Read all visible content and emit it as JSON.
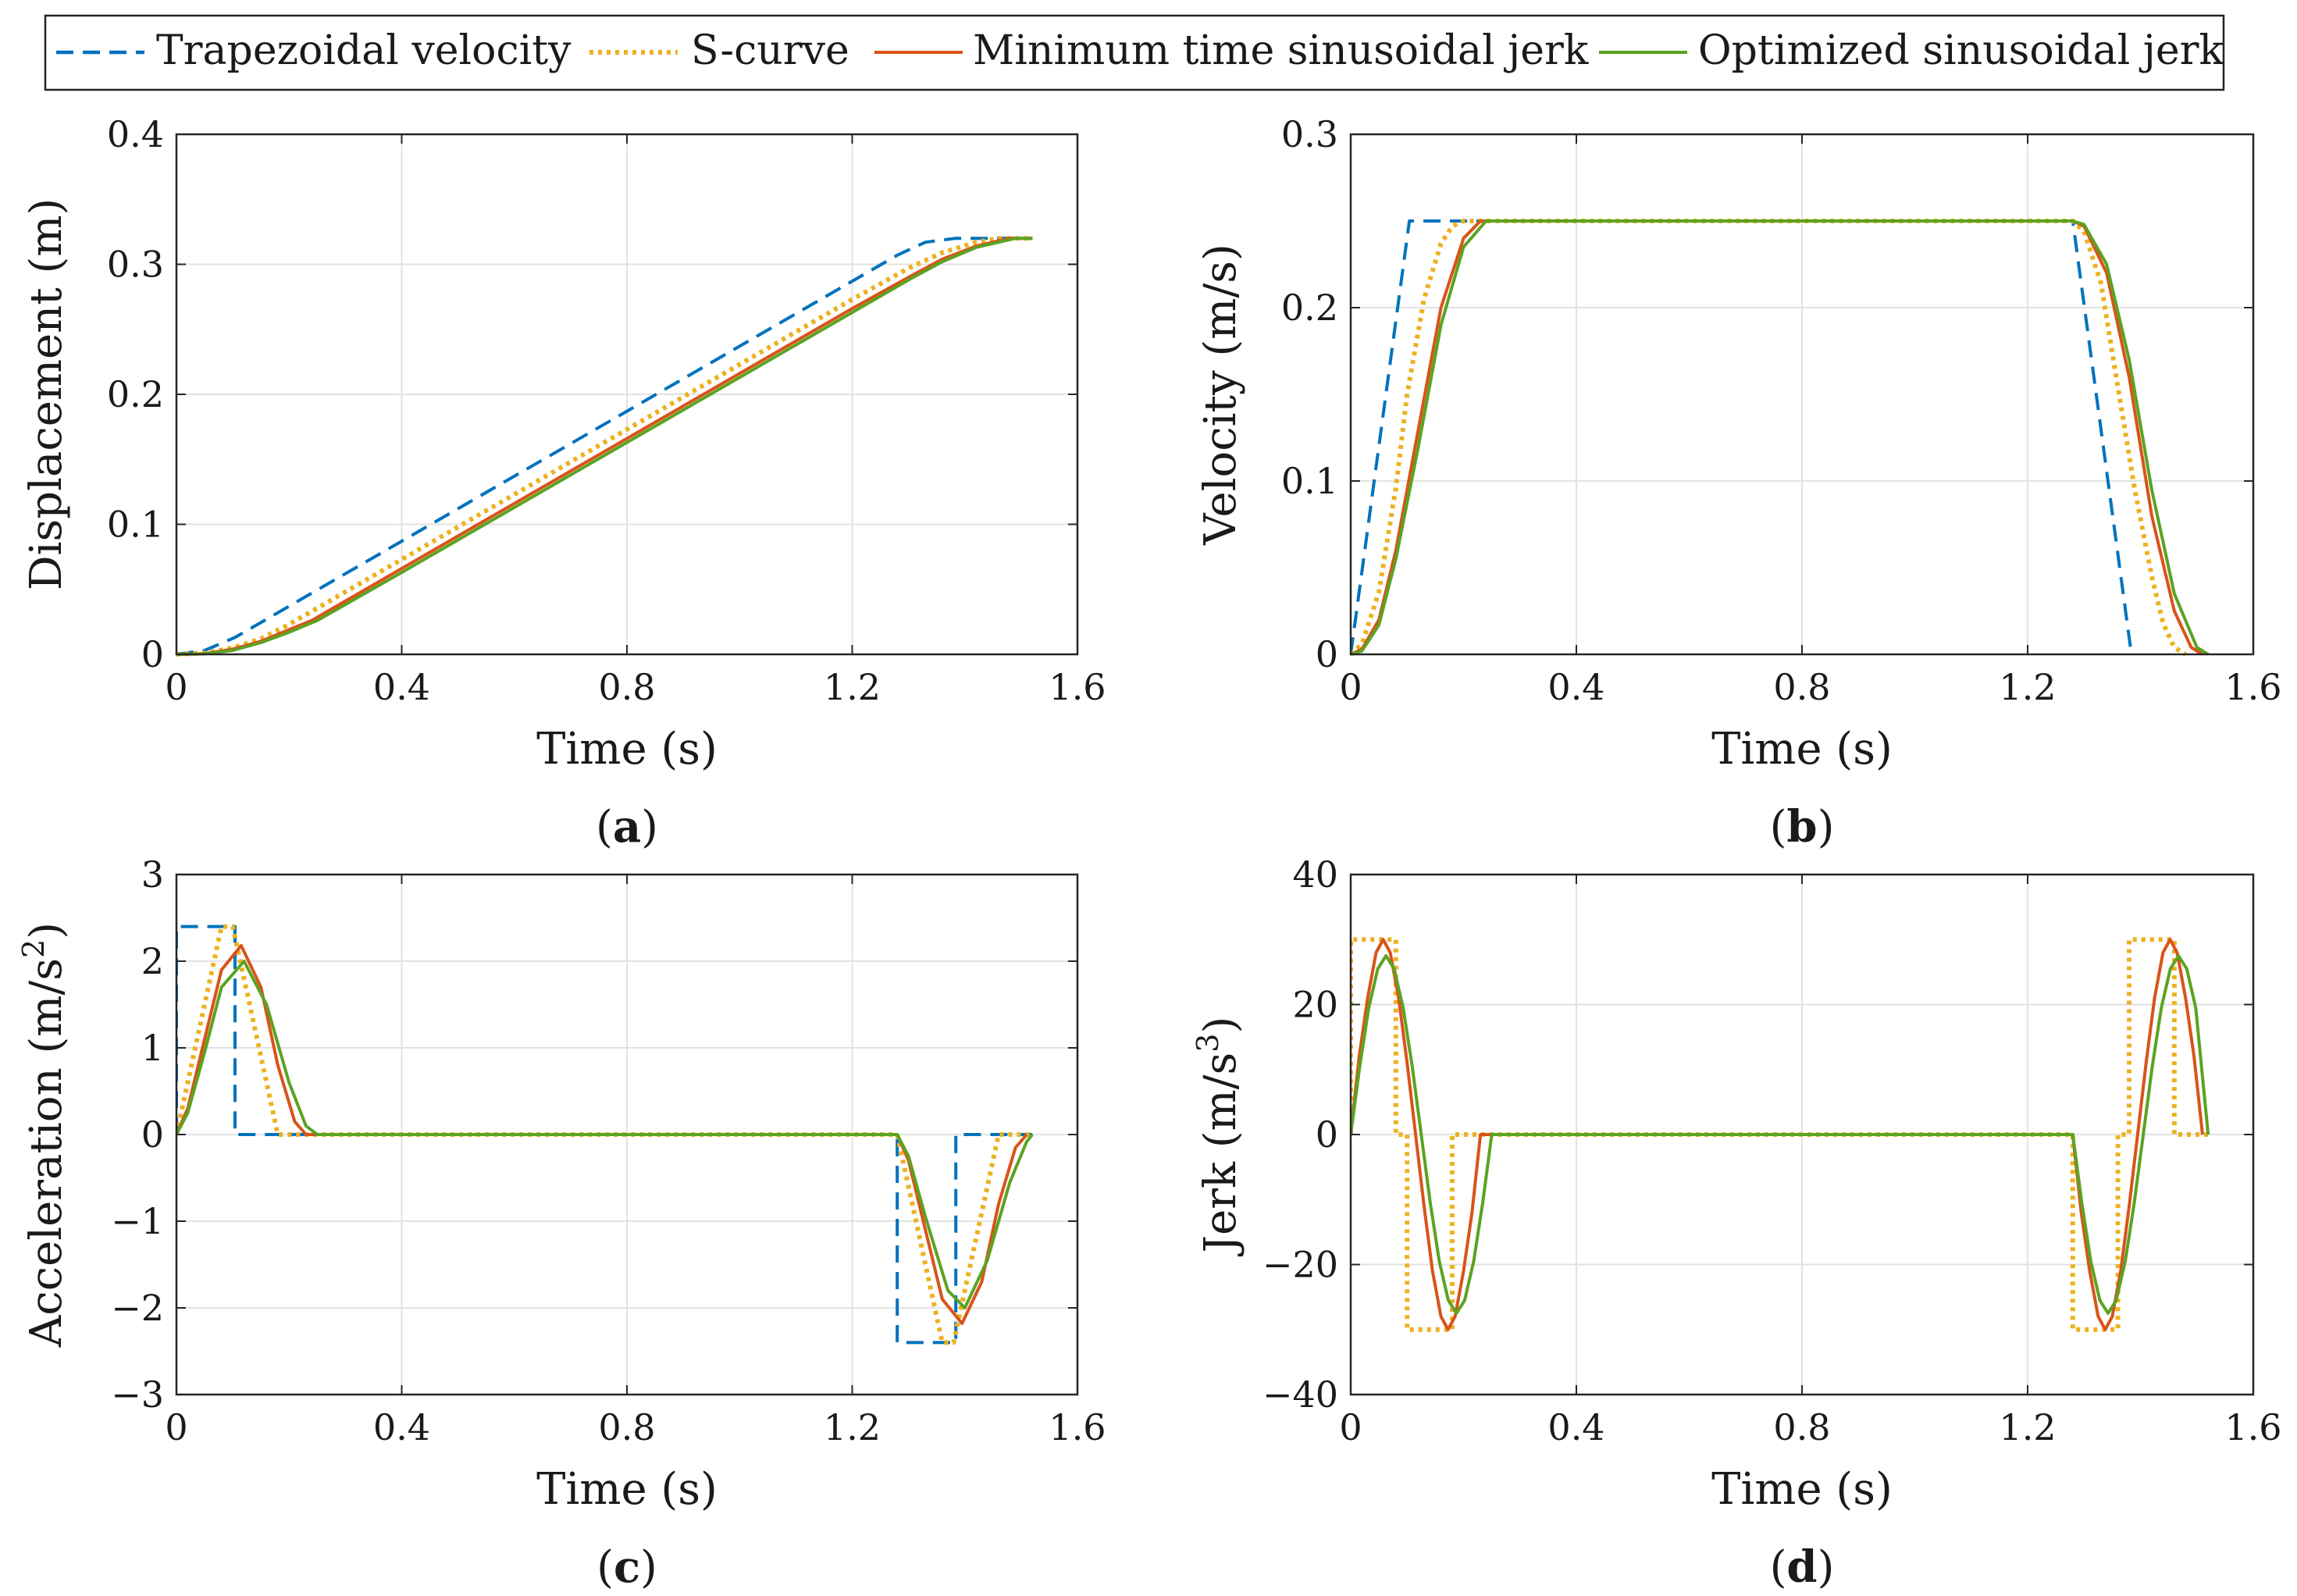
{
  "legend": [
    {
      "name": "Trapezoidal velocity",
      "color": "#0072BD",
      "dash": "dashed"
    },
    {
      "name": "S-curve",
      "color": "#EDB120",
      "dash": "dotted"
    },
    {
      "name": "Minimum time sinusoidal jerk",
      "color": "#D95319",
      "dash": "solid"
    },
    {
      "name": "Optimized sinusoidal jerk",
      "color": "#5BA322",
      "dash": "solid"
    }
  ],
  "chart_data": [
    {
      "type": "line",
      "caption": "(a)",
      "caption_letter": "a",
      "xlabel": "Time (s)",
      "ylabel": "Displacement (m)",
      "xlim": [
        0,
        1.6
      ],
      "ylim": [
        0,
        0.4
      ],
      "xticks": [
        0,
        0.4,
        0.8,
        1.2,
        1.6
      ],
      "xtick_labels": [
        "0",
        "0.4",
        "0.8",
        "1.2",
        "1.6"
      ],
      "yticks": [
        0,
        0.1,
        0.2,
        0.3,
        0.4
      ],
      "ytick_labels": [
        "0",
        "0.1",
        "0.2",
        "0.3",
        "0.4"
      ],
      "grid": true,
      "series": [
        {
          "name": "Trapezoidal velocity",
          "x": [
            0,
            0.05,
            0.104,
            0.2,
            0.4,
            0.6,
            0.8,
            1.0,
            1.2,
            1.28,
            1.33,
            1.384,
            1.52
          ],
          "y": [
            0,
            0.003,
            0.013,
            0.037,
            0.087,
            0.137,
            0.187,
            0.237,
            0.287,
            0.307,
            0.317,
            0.32,
            0.32
          ]
        },
        {
          "name": "S-curve",
          "x": [
            0,
            0.05,
            0.1,
            0.15,
            0.2,
            0.4,
            0.6,
            0.8,
            1.0,
            1.2,
            1.3,
            1.36,
            1.42,
            1.46,
            1.52
          ],
          "y": [
            0,
            0.001,
            0.005,
            0.012,
            0.023,
            0.073,
            0.123,
            0.173,
            0.223,
            0.273,
            0.297,
            0.309,
            0.317,
            0.32,
            0.32
          ]
        },
        {
          "name": "Minimum time sinusoidal jerk",
          "x": [
            0,
            0.05,
            0.1,
            0.15,
            0.2,
            0.24,
            0.4,
            0.6,
            0.8,
            1.0,
            1.2,
            1.3,
            1.36,
            1.42,
            1.48,
            1.52
          ],
          "y": [
            0,
            0.0005,
            0.004,
            0.01,
            0.019,
            0.026,
            0.066,
            0.116,
            0.166,
            0.216,
            0.266,
            0.29,
            0.304,
            0.314,
            0.32,
            0.32
          ]
        },
        {
          "name": "Optimized sinusoidal jerk",
          "x": [
            0,
            0.05,
            0.1,
            0.15,
            0.2,
            0.25,
            0.4,
            0.6,
            0.8,
            1.0,
            1.2,
            1.3,
            1.36,
            1.42,
            1.49,
            1.52
          ],
          "y": [
            0,
            0.0004,
            0.003,
            0.009,
            0.017,
            0.026,
            0.063,
            0.113,
            0.163,
            0.213,
            0.263,
            0.288,
            0.302,
            0.313,
            0.32,
            0.32
          ]
        }
      ]
    },
    {
      "type": "line",
      "caption": "(b)",
      "caption_letter": "b",
      "xlabel": "Time (s)",
      "ylabel": "Velocity (m/s)",
      "xlim": [
        0,
        1.6
      ],
      "ylim": [
        0,
        0.3
      ],
      "xticks": [
        0,
        0.4,
        0.8,
        1.2,
        1.6
      ],
      "xtick_labels": [
        "0",
        "0.4",
        "0.8",
        "1.2",
        "1.6"
      ],
      "yticks": [
        0,
        0.1,
        0.2,
        0.3
      ],
      "ytick_labels": [
        "0",
        "0.1",
        "0.2",
        "0.3"
      ],
      "grid": true,
      "series": [
        {
          "name": "Trapezoidal velocity",
          "x": [
            0,
            0.104,
            1.28,
            1.384
          ],
          "y": [
            0,
            0.25,
            0.25,
            0
          ]
        },
        {
          "name": "S-curve",
          "x": [
            0,
            0.02,
            0.05,
            0.08,
            0.1,
            0.13,
            0.16,
            0.18,
            0.2,
            1.28,
            1.3,
            1.33,
            1.36,
            1.39,
            1.42,
            1.44,
            1.46,
            1.48
          ],
          "y": [
            0,
            0.006,
            0.036,
            0.096,
            0.15,
            0.205,
            0.237,
            0.247,
            0.25,
            0.25,
            0.244,
            0.214,
            0.154,
            0.095,
            0.045,
            0.018,
            0.004,
            0
          ]
        },
        {
          "name": "Minimum time sinusoidal jerk",
          "x": [
            0,
            0.02,
            0.05,
            0.08,
            0.12,
            0.16,
            0.2,
            0.23,
            1.28,
            1.3,
            1.34,
            1.38,
            1.42,
            1.46,
            1.49,
            1.51
          ],
          "y": [
            0,
            0.003,
            0.02,
            0.06,
            0.13,
            0.2,
            0.24,
            0.25,
            0.25,
            0.247,
            0.22,
            0.16,
            0.08,
            0.025,
            0.004,
            0
          ]
        },
        {
          "name": "Optimized sinusoidal jerk",
          "x": [
            0,
            0.02,
            0.05,
            0.08,
            0.12,
            0.16,
            0.2,
            0.24,
            1.28,
            1.3,
            1.34,
            1.38,
            1.42,
            1.46,
            1.5,
            1.52
          ],
          "y": [
            0,
            0.002,
            0.017,
            0.055,
            0.12,
            0.19,
            0.235,
            0.25,
            0.25,
            0.248,
            0.225,
            0.17,
            0.095,
            0.035,
            0.004,
            0
          ]
        }
      ]
    },
    {
      "type": "line",
      "caption": "(c)",
      "caption_letter": "c",
      "xlabel": "Time (s)",
      "ylabel": "Acceleration (m/s",
      "ylabel_sup": "2",
      "ylabel_tail": ")",
      "xlim": [
        0,
        1.6
      ],
      "ylim": [
        -3,
        3
      ],
      "xticks": [
        0,
        0.4,
        0.8,
        1.2,
        1.6
      ],
      "xtick_labels": [
        "0",
        "0.4",
        "0.8",
        "1.2",
        "1.6"
      ],
      "yticks": [
        -3,
        -2,
        -1,
        0,
        1,
        2,
        3
      ],
      "ytick_labels": [
        "−3",
        "−2",
        "−1",
        "0",
        "1",
        "2",
        "3"
      ],
      "grid": true,
      "series": [
        {
          "name": "Trapezoidal velocity",
          "x": [
            0,
            0,
            0.104,
            0.104,
            1.28,
            1.28,
            1.384,
            1.384,
            1.52
          ],
          "y": [
            0,
            2.4,
            2.4,
            0,
            0,
            -2.4,
            -2.4,
            0,
            0
          ]
        },
        {
          "name": "S-curve",
          "x": [
            0,
            0.08,
            0.1,
            0.18,
            0.2,
            1.28,
            1.36,
            1.38,
            1.46,
            1.52
          ],
          "y": [
            0,
            2.4,
            2.4,
            0,
            0,
            0,
            -2.4,
            -2.4,
            0,
            0
          ]
        },
        {
          "name": "Minimum time sinusoidal jerk",
          "x": [
            0,
            0.02,
            0.05,
            0.08,
            0.115,
            0.15,
            0.18,
            0.21,
            0.23,
            1.28,
            1.3,
            1.33,
            1.36,
            1.395,
            1.43,
            1.46,
            1.49,
            1.51
          ],
          "y": [
            0,
            0.3,
            1.1,
            1.9,
            2.18,
            1.7,
            0.8,
            0.15,
            0,
            0,
            -0.3,
            -1.1,
            -1.9,
            -2.18,
            -1.7,
            -0.8,
            -0.15,
            0
          ]
        },
        {
          "name": "Optimized sinusoidal jerk",
          "x": [
            0,
            0.02,
            0.05,
            0.08,
            0.12,
            0.16,
            0.2,
            0.23,
            0.25,
            1.28,
            1.3,
            1.33,
            1.37,
            1.4,
            1.44,
            1.48,
            1.51,
            1.52
          ],
          "y": [
            0,
            0.25,
            0.95,
            1.7,
            2.0,
            1.5,
            0.6,
            0.1,
            0,
            0,
            -0.25,
            -0.95,
            -1.8,
            -2.0,
            -1.45,
            -0.55,
            -0.08,
            0
          ]
        }
      ]
    },
    {
      "type": "line",
      "caption": "(d)",
      "caption_letter": "d",
      "xlabel": "Time (s)",
      "ylabel": "Jerk (m/s",
      "ylabel_sup": "3",
      "ylabel_tail": ")",
      "xlim": [
        0,
        1.6
      ],
      "ylim": [
        -40,
        40
      ],
      "xticks": [
        0,
        0.4,
        0.8,
        1.2,
        1.6
      ],
      "xtick_labels": [
        "0",
        "0.4",
        "0.8",
        "1.2",
        "1.6"
      ],
      "yticks": [
        -40,
        -20,
        0,
        20,
        40
      ],
      "ytick_labels": [
        "−40",
        "−20",
        "0",
        "20",
        "40"
      ],
      "grid": true,
      "series": [
        {
          "name": "S-curve",
          "x": [
            0,
            0,
            0.08,
            0.08,
            0.1,
            0.1,
            0.18,
            0.18,
            0.2,
            1.28,
            1.28,
            1.36,
            1.36,
            1.38,
            1.38,
            1.46,
            1.46,
            1.52
          ],
          "y": [
            0,
            30,
            30,
            0,
            0,
            -30,
            -30,
            0,
            0,
            0,
            -30,
            -30,
            0,
            0,
            30,
            30,
            0,
            0
          ]
        },
        {
          "name": "Minimum time sinusoidal jerk",
          "x": [
            0,
            0.015,
            0.03,
            0.045,
            0.0575,
            0.07,
            0.085,
            0.1,
            0.115,
            0.13,
            0.145,
            0.16,
            0.1725,
            0.185,
            0.2,
            0.215,
            0.23,
            1.28,
            1.295,
            1.31,
            1.325,
            1.3375,
            1.35,
            1.365,
            1.38,
            1.395,
            1.41,
            1.425,
            1.44,
            1.4525,
            1.465,
            1.48,
            1.495,
            1.51
          ],
          "y": [
            0,
            12,
            21,
            28,
            30,
            28,
            21,
            11,
            0,
            -11,
            -21,
            -28,
            -30,
            -28,
            -21,
            -12,
            0,
            0,
            -12,
            -21,
            -28,
            -30,
            -28,
            -21,
            -11,
            0,
            11,
            21,
            28,
            30,
            28,
            21,
            12,
            0
          ]
        },
        {
          "name": "Optimized sinusoidal jerk",
          "x": [
            0,
            0.016,
            0.032,
            0.048,
            0.0625,
            0.077,
            0.093,
            0.109,
            0.125,
            0.141,
            0.157,
            0.173,
            0.1875,
            0.202,
            0.218,
            0.234,
            0.25,
            1.28,
            1.296,
            1.312,
            1.328,
            1.3425,
            1.357,
            1.373,
            1.389,
            1.405,
            1.421,
            1.437,
            1.453,
            1.4675,
            1.482,
            1.498,
            1.52
          ],
          "y": [
            0,
            10.5,
            19.5,
            25.5,
            27.5,
            25.5,
            19.5,
            10.5,
            0,
            -10.5,
            -19.5,
            -25.5,
            -27.5,
            -25.5,
            -19.5,
            -10.5,
            0,
            0,
            -10.5,
            -19.5,
            -25.5,
            -27.5,
            -25.5,
            -19.5,
            -10.5,
            0,
            10.5,
            19.5,
            25.5,
            27.5,
            25.5,
            19.5,
            0
          ]
        }
      ]
    }
  ]
}
